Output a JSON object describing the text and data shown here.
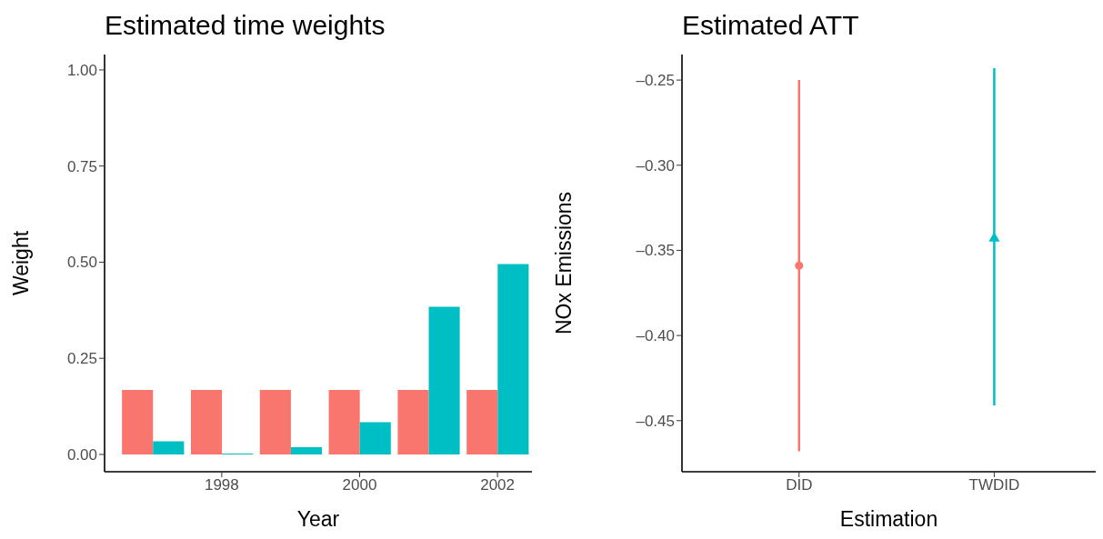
{
  "chart_data": [
    {
      "type": "bar",
      "title": "Estimated time weights",
      "xlabel": "Year",
      "ylabel": "Weight",
      "x": [
        1997,
        1998,
        1999,
        2000,
        2001,
        2002
      ],
      "series": [
        {
          "color": "#f8766d",
          "values": [
            0.168,
            0.168,
            0.168,
            0.168,
            0.168,
            0.168
          ]
        },
        {
          "color": "#00bfc4",
          "values": [
            0.034,
            0.002,
            0.019,
            0.084,
            0.384,
            0.495
          ]
        }
      ],
      "xlim": [
        1996.3,
        2002.5
      ],
      "xticks": [
        1998,
        2000,
        2002
      ],
      "ylim": [
        -0.045,
        1.04
      ],
      "yticks": [
        {
          "value": 0,
          "label": "0.00"
        },
        {
          "value": 0.25,
          "label": "0.25"
        },
        {
          "value": 0.5,
          "label": "0.50"
        },
        {
          "value": 0.75,
          "label": "0.75"
        },
        {
          "value": 1,
          "label": "1.00"
        }
      ],
      "grid": false,
      "legend": false
    },
    {
      "type": "scatter",
      "title": "Estimated ATT",
      "xlabel": "Estimation",
      "ylabel": "NOx Emissions",
      "categories": [
        "DID",
        "TWDID"
      ],
      "series": [
        {
          "color": "#f8766d",
          "marker": "circle",
          "values": [
            -0.359,
            null
          ],
          "errors": [
            [
              -0.468,
              -0.25
            ],
            null
          ]
        },
        {
          "color": "#00bfc4",
          "marker": "triangle",
          "values": [
            null,
            -0.343
          ],
          "errors": [
            null,
            [
              -0.441,
              -0.243
            ]
          ]
        }
      ],
      "ylim": [
        -0.48,
        -0.235
      ],
      "yticks": [
        {
          "value": -0.25,
          "label": "–0.25"
        },
        {
          "value": -0.3,
          "label": "–0.30"
        },
        {
          "value": -0.35,
          "label": "–0.35"
        },
        {
          "value": -0.4,
          "label": "–0.40"
        },
        {
          "value": -0.45,
          "label": "–0.45"
        }
      ],
      "grid": false,
      "legend": false
    }
  ]
}
